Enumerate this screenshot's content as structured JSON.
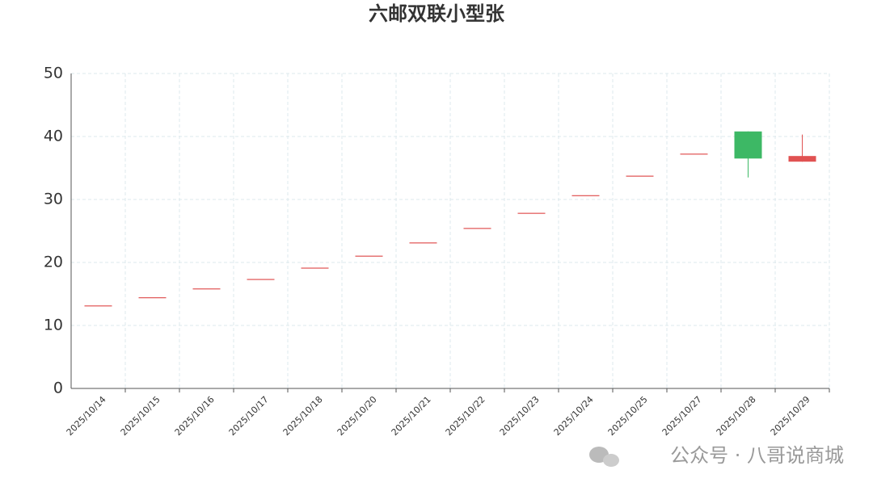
{
  "chart_data": {
    "type": "candlestick",
    "title": "六邮双联小型张",
    "categories": [
      "2025/10/14",
      "2025/10/15",
      "2025/10/16",
      "2025/10/17",
      "2025/10/18",
      "2025/10/20",
      "2025/10/21",
      "2025/10/22",
      "2025/10/23",
      "2025/10/24",
      "2025/10/25",
      "2025/10/27",
      "2025/10/28",
      "2025/10/29"
    ],
    "open": [
      13.1,
      14.4,
      15.8,
      17.3,
      19.1,
      21.0,
      23.1,
      25.4,
      27.8,
      30.6,
      33.7,
      37.2,
      40.8,
      36.0
    ],
    "close": [
      13.1,
      14.4,
      15.8,
      17.3,
      19.1,
      21.0,
      23.1,
      25.4,
      27.8,
      30.6,
      33.7,
      37.2,
      36.5,
      36.9
    ],
    "low": [
      13.1,
      14.4,
      15.8,
      17.3,
      19.1,
      21.0,
      23.1,
      25.4,
      27.8,
      30.6,
      33.7,
      37.2,
      33.5,
      36.0
    ],
    "high": [
      13.1,
      14.4,
      15.8,
      17.3,
      19.1,
      21.0,
      23.1,
      25.4,
      27.8,
      30.6,
      33.7,
      37.2,
      40.8,
      40.3
    ],
    "up_color": "#e05252",
    "down_color": "#3db865",
    "ylim": [
      0,
      50
    ],
    "yticks": [
      0,
      10,
      20,
      30,
      40,
      50
    ],
    "grid": true
  },
  "watermark": "公众号 · 八哥说商城"
}
